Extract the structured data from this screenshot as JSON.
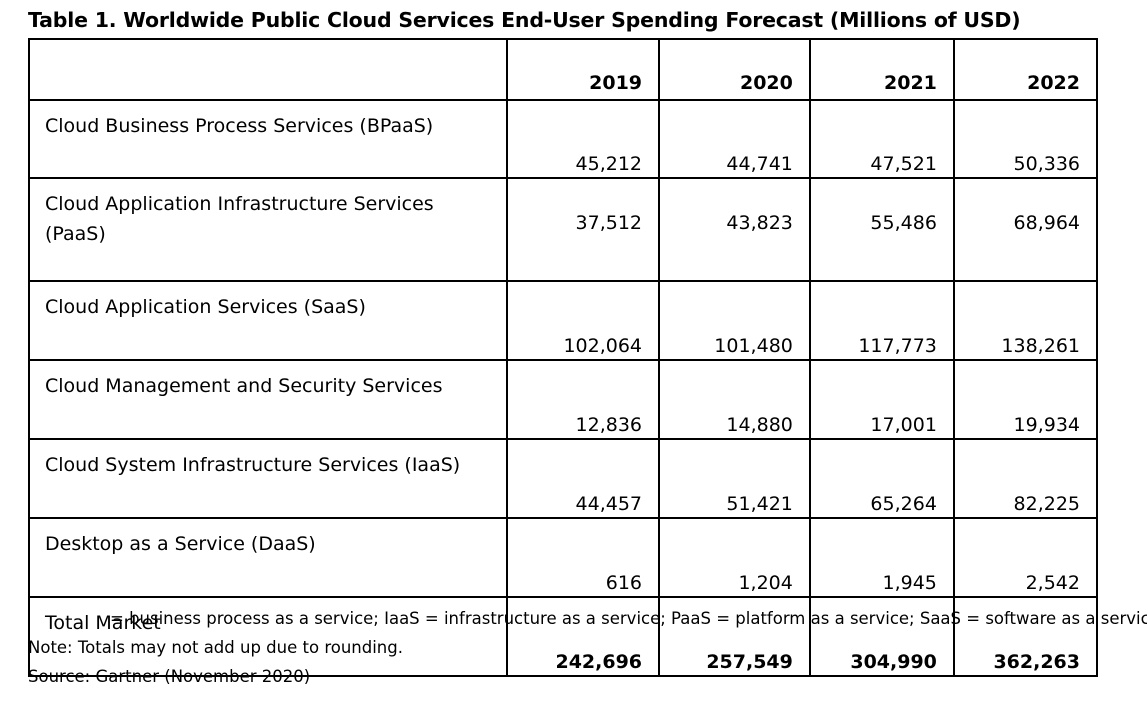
{
  "table": {
    "title": "Table 1. Worldwide Public Cloud Services End-User Spending Forecast (Millions of USD)",
    "corner": "",
    "columns": [
      "2019",
      "2020",
      "2021",
      "2022"
    ],
    "rows": [
      {
        "label": "Cloud Business Process Services (BPaaS)",
        "values": [
          "45,212",
          "44,741",
          "47,521",
          "50,336"
        ]
      },
      {
        "label": "Cloud Application Infrastructure Services (PaaS)",
        "values": [
          "37,512",
          "43,823",
          "55,486",
          "68,964"
        ]
      },
      {
        "label": "Cloud Application Services (SaaS)",
        "values": [
          "102,064",
          "101,480",
          "117,773",
          "138,261"
        ]
      },
      {
        "label": "Cloud Management and Security Services",
        "values": [
          "12,836",
          "14,880",
          "17,001",
          "19,934"
        ]
      },
      {
        "label": "Cloud System Infrastructure Services (IaaS)",
        "values": [
          "44,457",
          "51,421",
          "65,264",
          "82,225"
        ]
      },
      {
        "label": "Desktop as a Service (DaaS)",
        "values": [
          "616",
          "1,204",
          "1,945",
          "2,542"
        ]
      },
      {
        "label": "Total Market",
        "values": [
          "242,696",
          "257,549",
          "304,990",
          "362,263"
        ]
      }
    ]
  },
  "footnotes": {
    "abbreviations": "= business process as a service; IaaS = infrastructure as a service; PaaS = platform as a service; SaaS = software as a service",
    "note": "Note: Totals may not add up due to rounding.",
    "source": "Source: Gartner (November 2020)"
  }
}
